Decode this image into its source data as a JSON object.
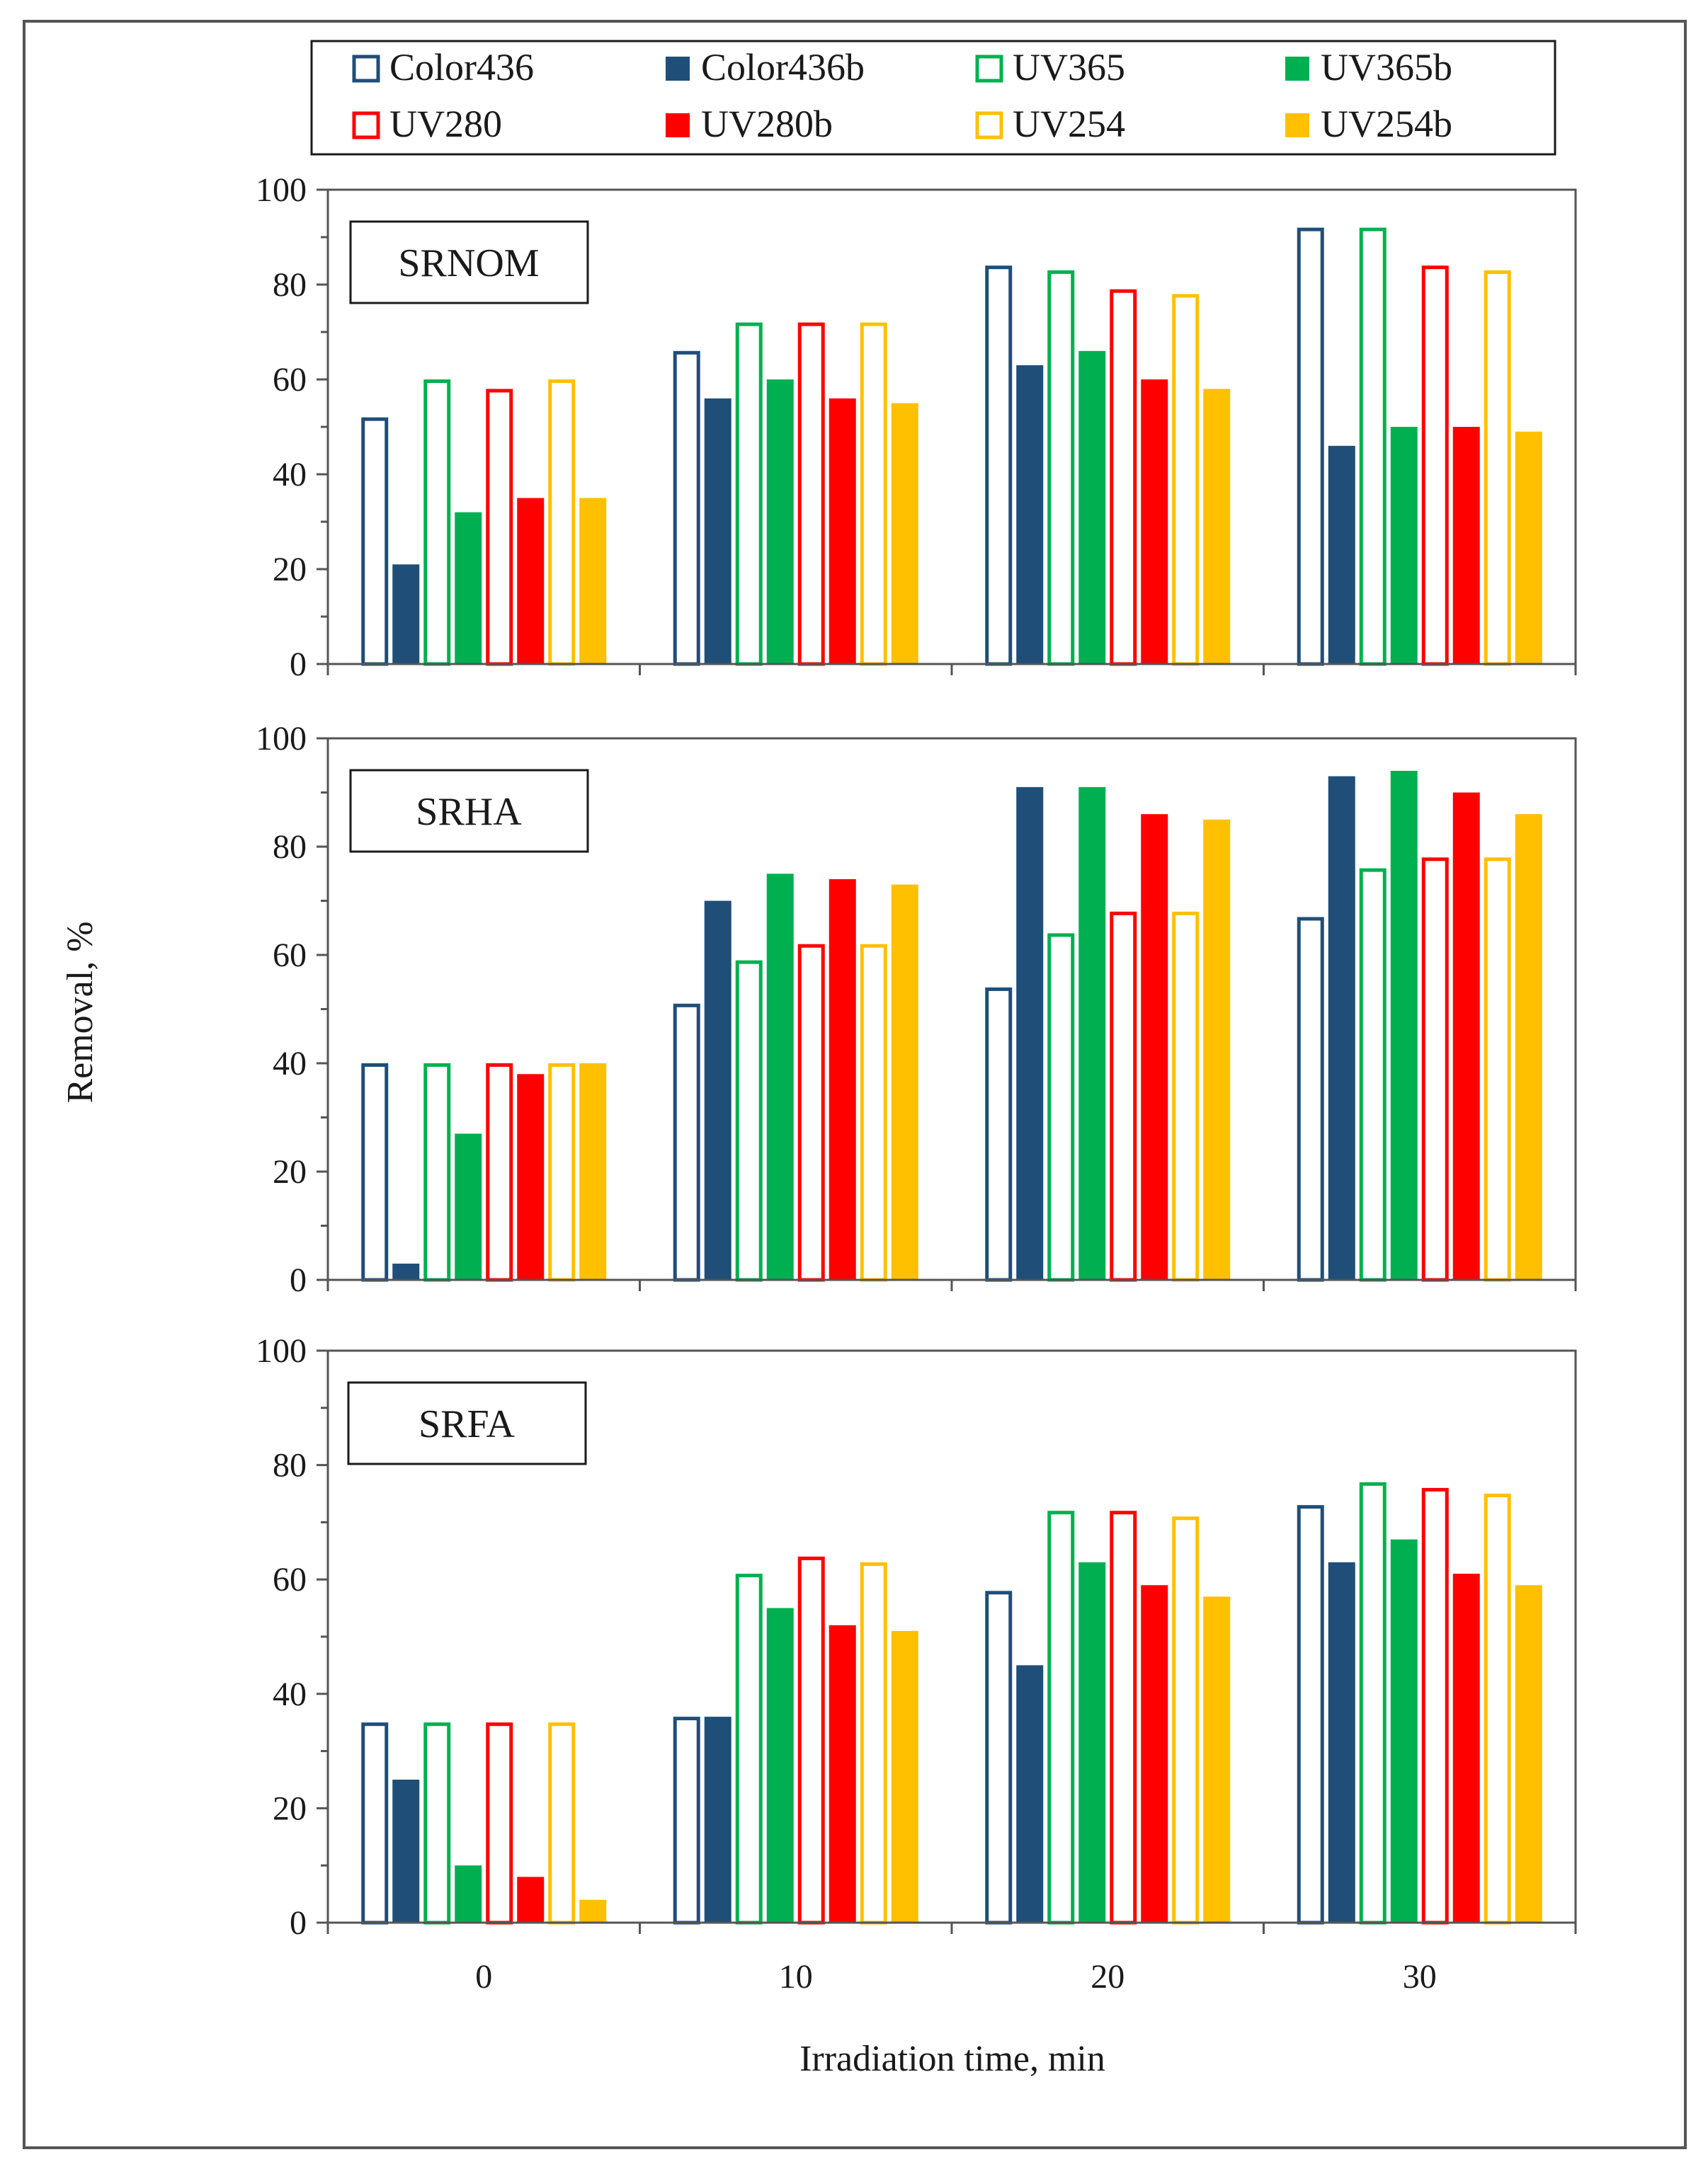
{
  "chart_data": {
    "type": "bar",
    "xlabel": "Irradiation time, min",
    "ylabel": "Removal, %",
    "ylim": [
      0,
      100
    ],
    "yticks": [
      "0",
      "20",
      "40",
      "60",
      "80",
      "100"
    ],
    "categories": [
      "0",
      "10",
      "20",
      "30"
    ],
    "legend_position": "top",
    "series_styles": [
      {
        "name": "Color436",
        "color": "#1f4e79",
        "filled": false
      },
      {
        "name": "Color436b",
        "color": "#1f4e79",
        "filled": true
      },
      {
        "name": "UV365",
        "color": "#00b050",
        "filled": false
      },
      {
        "name": "UV365b",
        "color": "#00b050",
        "filled": true
      },
      {
        "name": "UV280",
        "color": "#ff0000",
        "filled": false
      },
      {
        "name": "UV280b",
        "color": "#ff0000",
        "filled": true
      },
      {
        "name": "UV254",
        "color": "#ffc000",
        "filled": false
      },
      {
        "name": "UV254b",
        "color": "#ffc000",
        "filled": true
      }
    ],
    "panels": [
      {
        "label": "SRNOM",
        "series": [
          {
            "name": "Color436",
            "values": [
              52,
              66,
              84,
              92
            ]
          },
          {
            "name": "Color436b",
            "values": [
              21,
              56,
              63,
              46
            ]
          },
          {
            "name": "UV365",
            "values": [
              60,
              72,
              83,
              92
            ]
          },
          {
            "name": "UV365b",
            "values": [
              32,
              60,
              66,
              50
            ]
          },
          {
            "name": "UV280",
            "values": [
              58,
              72,
              79,
              84
            ]
          },
          {
            "name": "UV280b",
            "values": [
              35,
              56,
              60,
              50
            ]
          },
          {
            "name": "UV254",
            "values": [
              60,
              72,
              78,
              83
            ]
          },
          {
            "name": "UV254b",
            "values": [
              35,
              55,
              58,
              49
            ]
          }
        ]
      },
      {
        "label": "SRHA",
        "series": [
          {
            "name": "Color436",
            "values": [
              40,
              51,
              54,
              67
            ]
          },
          {
            "name": "Color436b",
            "values": [
              3,
              70,
              91,
              93
            ]
          },
          {
            "name": "UV365",
            "values": [
              40,
              59,
              64,
              76
            ]
          },
          {
            "name": "UV365b",
            "values": [
              27,
              75,
              91,
              94
            ]
          },
          {
            "name": "UV280",
            "values": [
              40,
              62,
              68,
              78
            ]
          },
          {
            "name": "UV280b",
            "values": [
              38,
              74,
              86,
              90
            ]
          },
          {
            "name": "UV254",
            "values": [
              40,
              62,
              68,
              78
            ]
          },
          {
            "name": "UV254b",
            "values": [
              40,
              73,
              85,
              86
            ]
          }
        ]
      },
      {
        "label": "SRFA",
        "series": [
          {
            "name": "Color436",
            "values": [
              35,
              36,
              58,
              73
            ]
          },
          {
            "name": "Color436b",
            "values": [
              25,
              36,
              45,
              63
            ]
          },
          {
            "name": "UV365",
            "values": [
              35,
              61,
              72,
              77
            ]
          },
          {
            "name": "UV365b",
            "values": [
              10,
              55,
              63,
              67
            ]
          },
          {
            "name": "UV280",
            "values": [
              35,
              64,
              72,
              76
            ]
          },
          {
            "name": "UV280b",
            "values": [
              8,
              52,
              59,
              61
            ]
          },
          {
            "name": "UV254",
            "values": [
              35,
              63,
              71,
              75
            ]
          },
          {
            "name": "UV254b",
            "values": [
              4,
              51,
              57,
              59
            ]
          }
        ]
      }
    ]
  }
}
